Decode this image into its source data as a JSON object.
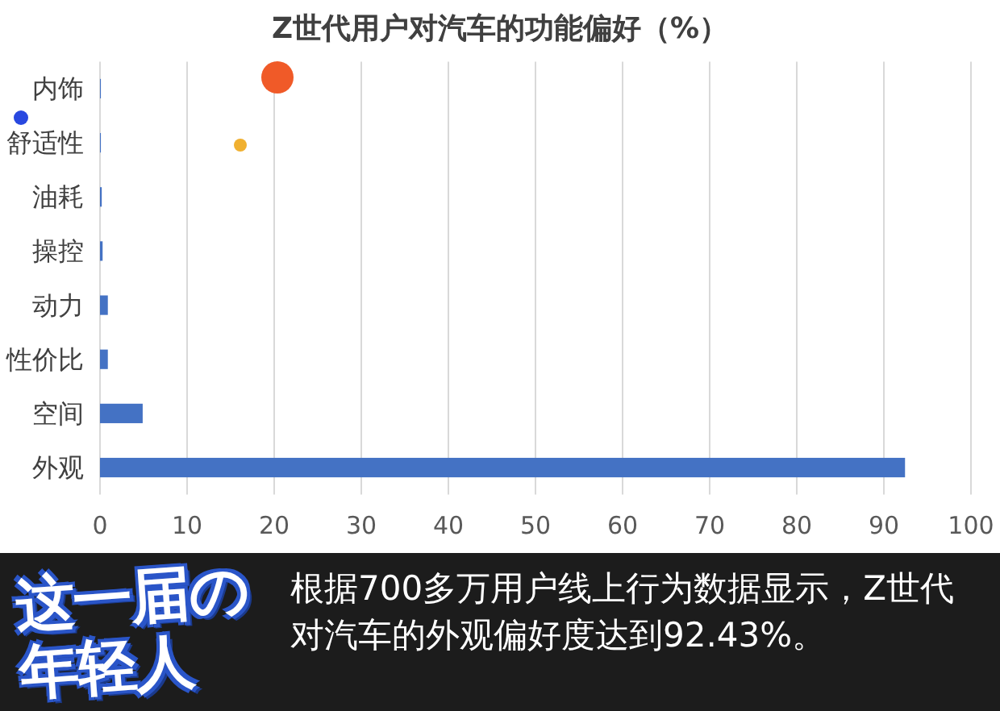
{
  "chart_data": {
    "type": "bar",
    "orientation": "horizontal",
    "title": "Z世代用户对汽车的功能偏好（%）",
    "categories": [
      "内饰",
      "舒适性",
      "油耗",
      "操控",
      "动力",
      "性价比",
      "空间",
      "外观"
    ],
    "values": [
      0.1,
      0.1,
      0.2,
      0.3,
      0.9,
      0.9,
      4.9,
      92.43
    ],
    "color": "#4472c4",
    "xlim": [
      0,
      100
    ],
    "xticks": [
      0,
      10,
      20,
      30,
      40,
      50,
      60,
      70,
      80,
      90,
      100
    ],
    "grid": "x",
    "annotations": [
      "这一届の年轻人",
      "根据700多万用户线上行为数据显示，Z世代对汽车的外观偏好度达到92.43%。"
    ]
  }
}
